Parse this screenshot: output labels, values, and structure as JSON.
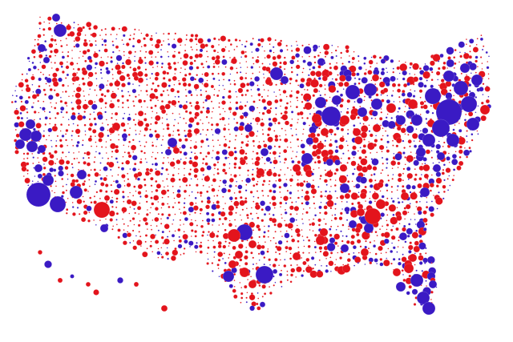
{
  "map": {
    "colors": [
      "#e3141c",
      "#3a1ac4"
    ]
  }
}
